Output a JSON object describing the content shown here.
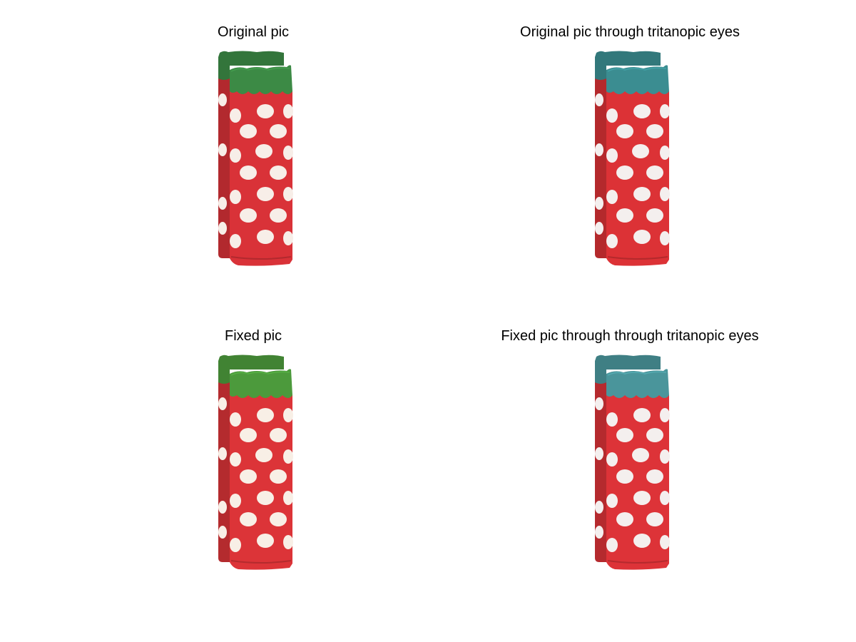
{
  "panels": [
    {
      "title": "Original pic",
      "cuff_color": "#3c8a45",
      "sock_color": "#d93238",
      "dot_color": "#f7eee8"
    },
    {
      "title": "Original pic through tritanopic eyes",
      "cuff_color": "#3b8d91",
      "sock_color": "#dc3236",
      "dot_color": "#f4efee"
    },
    {
      "title": "Fixed pic",
      "cuff_color": "#4c9a3c",
      "sock_color": "#dc3438",
      "dot_color": "#f8efe6"
    },
    {
      "title": "Fixed pic through through tritanopic eyes",
      "cuff_color": "#4a959b",
      "sock_color": "#dd3338",
      "dot_color": "#f4efee"
    }
  ]
}
